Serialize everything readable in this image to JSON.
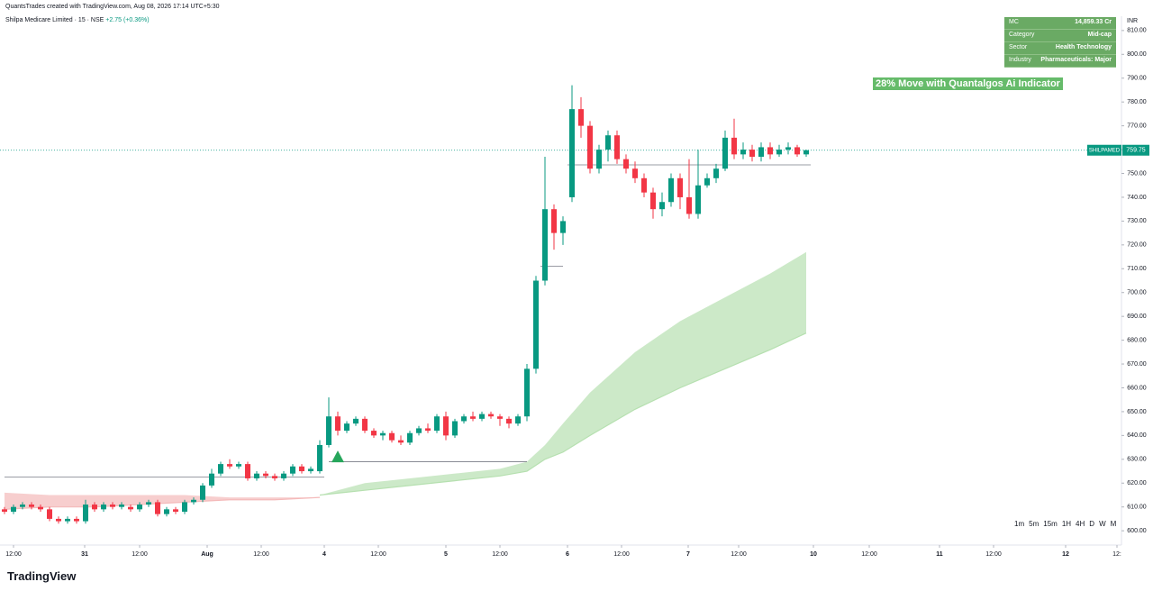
{
  "header": {
    "credit": "QuantsTrades created with TradingView.com, Aug 08, 2026 17:14 UTC+5:30",
    "symbol": "Shilpa Medicare Limited · 15 · NSE",
    "change": "+2.75 (+0.36%)",
    "currency": "INR",
    "logo": "TradingView"
  },
  "info_table": [
    [
      "MC",
      "14,859.33 Cr"
    ],
    [
      "Category",
      "Mid-cap"
    ],
    [
      "Sector",
      "Health Technology"
    ],
    [
      "Industry",
      "Pharmaceuticals: Major"
    ]
  ],
  "annotation": "28% Move with Quantalgos Ai Indicator",
  "timeframes": [
    "1m",
    "5m",
    "15m",
    "1H",
    "4H",
    "D",
    "W",
    "M"
  ],
  "chart_data": {
    "type": "candlestick",
    "up_color": "#089981",
    "down_color": "#f23645",
    "xlim": [
      -0.5,
      124
    ],
    "ylim": [
      594,
      816
    ],
    "xticks": [
      {
        "value": 1,
        "label": "12:00"
      },
      {
        "value": 8.9,
        "label": "31"
      },
      {
        "value": 15,
        "label": "12:00"
      },
      {
        "value": 22.5,
        "label": "Aug"
      },
      {
        "value": 28.5,
        "label": "12:00"
      },
      {
        "value": 35.5,
        "label": "4"
      },
      {
        "value": 41.5,
        "label": "12:00"
      },
      {
        "value": 49,
        "label": "5"
      },
      {
        "value": 55,
        "label": "12:00"
      },
      {
        "value": 62.5,
        "label": "6"
      },
      {
        "value": 68.5,
        "label": "12:00"
      },
      {
        "value": 75.9,
        "label": "7"
      },
      {
        "value": 81.5,
        "label": "12:00"
      },
      {
        "value": 89.8,
        "label": "10"
      },
      {
        "value": 96,
        "label": "12:00"
      },
      {
        "value": 103.8,
        "label": "11"
      },
      {
        "value": 109.8,
        "label": "12:00"
      },
      {
        "value": 117.8,
        "label": "12"
      },
      {
        "value": 123.5,
        "label": "12:"
      }
    ],
    "yticks": [
      {
        "value": 600,
        "label": "600.00"
      },
      {
        "value": 610,
        "label": "610.00"
      },
      {
        "value": 620,
        "label": "620.00"
      },
      {
        "value": 630,
        "label": "630.00"
      },
      {
        "value": 640,
        "label": "640.00"
      },
      {
        "value": 650,
        "label": "650.00"
      },
      {
        "value": 660,
        "label": "660.00"
      },
      {
        "value": 670,
        "label": "670.00"
      },
      {
        "value": 680,
        "label": "680.00"
      },
      {
        "value": 690,
        "label": "690.00"
      },
      {
        "value": 700,
        "label": "700.00"
      },
      {
        "value": 710,
        "label": "710.00"
      },
      {
        "value": 720,
        "label": "720.00"
      },
      {
        "value": 730,
        "label": "730.00"
      },
      {
        "value": 740,
        "label": "740.00"
      },
      {
        "value": 750,
        "label": "750.00"
      },
      {
        "value": 760,
        "label": "760.00"
      },
      {
        "value": 770,
        "label": "770.00"
      },
      {
        "value": 780,
        "label": "780.00"
      },
      {
        "value": 790,
        "label": "790.00"
      },
      {
        "value": 800,
        "label": "800.00"
      },
      {
        "value": 810,
        "label": "810.00"
      }
    ],
    "open": [
      609,
      608,
      610,
      611,
      610,
      609,
      605,
      604,
      605,
      604,
      611,
      609,
      611,
      610,
      610,
      609,
      611,
      612,
      607,
      609,
      608,
      612,
      613,
      619,
      624,
      628,
      627,
      628,
      622,
      624,
      623,
      622,
      624,
      627,
      625,
      625,
      636,
      648,
      642,
      645,
      647,
      642,
      640,
      641,
      638,
      637,
      641,
      643,
      642,
      648,
      640,
      646,
      648,
      647,
      649,
      648,
      647,
      645,
      648,
      668,
      705,
      735,
      725,
      740,
      777,
      770,
      752,
      760,
      766,
      756,
      752,
      748,
      742,
      735,
      738,
      748,
      740,
      733,
      745,
      748,
      752,
      765,
      758,
      760,
      757,
      761,
      758,
      760,
      761,
      758
    ],
    "high": [
      610,
      611,
      612,
      612,
      611,
      610,
      606,
      606,
      606,
      613,
      612,
      612,
      612,
      612,
      611,
      612,
      613,
      613,
      610,
      610,
      613,
      614,
      620,
      626,
      629,
      630,
      629,
      629,
      625,
      625,
      624,
      625,
      628,
      628,
      627,
      638,
      656,
      650,
      646,
      648,
      648,
      643,
      642,
      642,
      640,
      642,
      644,
      645,
      649,
      650,
      647,
      649,
      650,
      650,
      650,
      649,
      648,
      649,
      670,
      707,
      757,
      737,
      732,
      787,
      782,
      772,
      762,
      768,
      768,
      758,
      755,
      750,
      744,
      742,
      750,
      750,
      756,
      760,
      750,
      754,
      768,
      773,
      763,
      762,
      763,
      763,
      762,
      763,
      762,
      760
    ],
    "low": [
      607,
      607,
      609,
      609,
      608,
      604,
      603,
      603,
      603,
      603,
      608,
      608,
      609,
      609,
      608,
      608,
      610,
      606,
      606,
      607,
      607,
      611,
      612,
      618,
      623,
      626,
      626,
      621,
      621,
      622,
      621,
      621,
      623,
      624,
      624,
      624,
      635,
      640,
      641,
      644,
      641,
      639,
      638,
      637,
      636,
      636,
      640,
      641,
      641,
      638,
      639,
      645,
      646,
      646,
      647,
      644,
      643,
      644,
      646,
      666,
      703,
      718,
      720,
      738,
      765,
      750,
      750,
      755,
      754,
      750,
      746,
      740,
      731,
      732,
      736,
      735,
      731,
      731,
      744,
      746,
      751,
      756,
      756,
      755,
      755,
      756,
      757,
      758,
      757,
      757
    ],
    "close": [
      608,
      610,
      611,
      610,
      609,
      605,
      604,
      605,
      604,
      611,
      609,
      611,
      610,
      611,
      609,
      611,
      612,
      607,
      609,
      608,
      612,
      613,
      619,
      624,
      628,
      627,
      628,
      622,
      624,
      623,
      622,
      624,
      627,
      625,
      626,
      636,
      648,
      642,
      645,
      647,
      642,
      640,
      641,
      638,
      637,
      641,
      643,
      642,
      648,
      640,
      646,
      648,
      647,
      649,
      648,
      647,
      645,
      648,
      668,
      705,
      735,
      725,
      730,
      777,
      770,
      752,
      760,
      766,
      756,
      752,
      748,
      742,
      735,
      738,
      748,
      740,
      733,
      745,
      748,
      752,
      765,
      758,
      760,
      757,
      761,
      758,
      760,
      761,
      758,
      759.75
    ],
    "bands": [
      {
        "color": "#f4b9b9",
        "x": [
          0,
          5,
          10,
          15,
          20,
          25,
          30,
          35
        ],
        "upper": [
          616,
          615,
          615,
          615,
          615,
          614,
          614,
          614
        ],
        "lower": [
          609,
          610,
          610,
          611,
          612,
          613,
          613,
          614
        ]
      },
      {
        "color": "#b6e0b0",
        "x": [
          35,
          40,
          45,
          50,
          55,
          58,
          60,
          62,
          65,
          70,
          75,
          80,
          85,
          89
        ],
        "upper": [
          615,
          620,
          622,
          624,
          626,
          629,
          636,
          645,
          658,
          675,
          688,
          698,
          708,
          717
        ],
        "lower": [
          615,
          617,
          619,
          621,
          623,
          625,
          630,
          633,
          640,
          651,
          660,
          668,
          676,
          683
        ]
      }
    ],
    "levels": [
      {
        "value": 622.5,
        "from": 0,
        "to": 35.5
      },
      {
        "value": 629,
        "from": 36,
        "to": 58
      },
      {
        "value": 711,
        "from": 59.5,
        "to": 62
      },
      {
        "value": 753.6,
        "from": 62.5,
        "to": 89.5
      }
    ],
    "signal": {
      "x": 37,
      "value": 631,
      "color": "#26a65b"
    },
    "last_price": {
      "label": "SHILPAMED",
      "value": 759.75,
      "color": "#089981"
    }
  }
}
